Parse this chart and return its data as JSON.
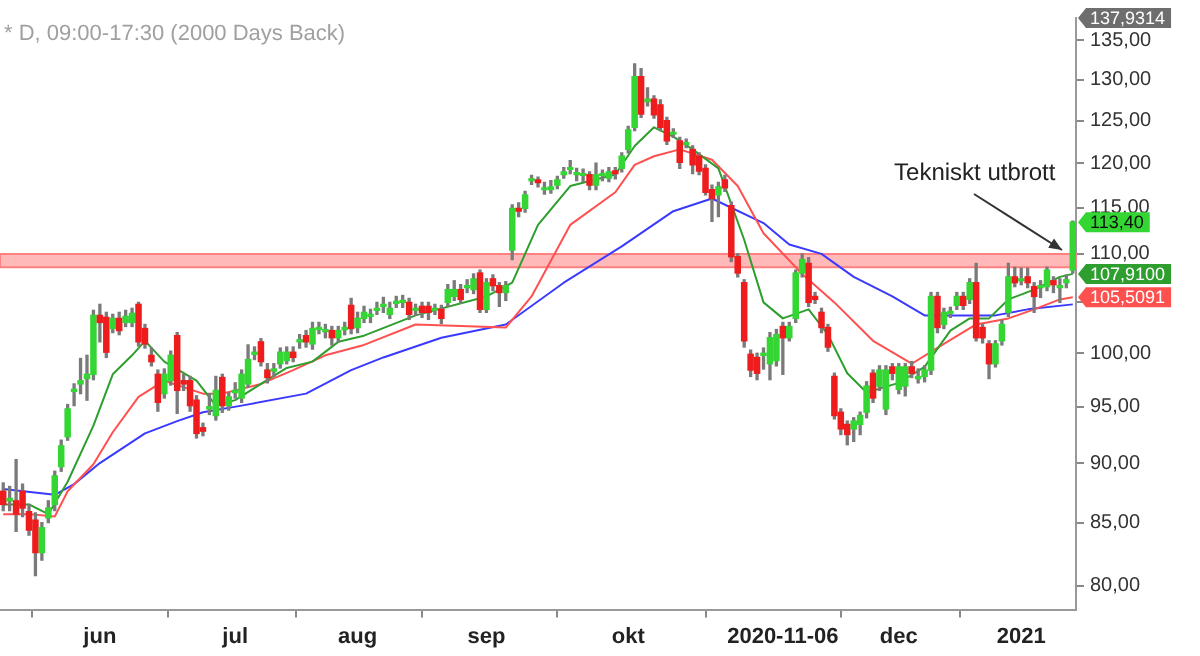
{
  "chart_data": {
    "type": "candlestick",
    "title": "* D, 09:00-17:30 (2000 Days Back)",
    "categories": [
      null,
      null,
      null,
      null,
      null,
      null,
      null,
      null,
      null,
      null,
      null,
      null,
      null,
      null,
      null,
      "jun",
      null,
      null,
      null,
      null,
      null,
      null,
      null,
      null,
      null,
      null,
      null,
      null,
      null,
      null,
      null,
      null,
      null,
      null,
      null,
      null,
      "jul",
      null,
      null,
      null,
      null,
      null,
      null,
      null,
      null,
      null,
      null,
      null,
      null,
      null,
      null,
      null,
      null,
      null,
      null,
      "aug",
      null,
      null,
      null,
      null,
      null,
      null,
      null,
      null,
      null,
      null,
      null,
      null,
      null,
      null,
      null,
      null,
      null,
      null,
      null,
      "sep",
      null,
      null,
      null,
      null,
      null,
      null,
      null,
      null,
      null,
      null,
      null,
      null,
      null,
      null,
      null,
      null,
      null,
      null,
      null,
      null,
      null,
      "okt",
      null,
      null,
      null,
      null,
      null,
      null,
      null,
      null,
      null,
      null,
      null,
      null,
      null,
      null,
      null,
      null,
      null,
      null,
      null,
      null,
      null,
      null,
      null,
      "2020-11-06",
      null,
      null,
      null,
      null,
      null,
      null,
      null,
      null,
      null,
      null,
      null,
      null,
      null,
      null,
      null,
      null,
      null,
      "dec",
      null,
      null,
      null,
      null,
      null,
      null,
      null,
      null,
      null,
      null,
      null,
      null,
      null,
      null,
      null,
      null,
      null,
      null,
      "2021",
      null,
      null,
      null,
      null,
      null,
      null,
      null,
      null
    ],
    "ohlc": [
      [
        87.6,
        88.3,
        86.0,
        86.5
      ],
      [
        86.8,
        88.0,
        86.0,
        87.0
      ],
      [
        86.8,
        90.3,
        84.3,
        85.7
      ],
      [
        87.6,
        88.2,
        85.5,
        86.2
      ],
      [
        85.9,
        86.5,
        84.0,
        84.4
      ],
      [
        85.2,
        85.8,
        80.8,
        82.6
      ],
      [
        82.6,
        85.0,
        82.0,
        84.6
      ],
      [
        85.4,
        86.8,
        85.0,
        86.2
      ],
      [
        86.5,
        89.3,
        86.0,
        88.9
      ],
      [
        89.7,
        92.0,
        89.3,
        91.5
      ],
      [
        92.3,
        95.2,
        92.0,
        94.8
      ],
      [
        96.4,
        97.1,
        95.1,
        96.6
      ],
      [
        97.1,
        99.5,
        96.2,
        97.4
      ],
      [
        97.6,
        99.8,
        95.6,
        98.0
      ],
      [
        98.0,
        104.2,
        97.5,
        103.7
      ],
      [
        103.7,
        104.8,
        101.1,
        103.0
      ],
      [
        103.5,
        104.0,
        99.6,
        100.1
      ],
      [
        102.4,
        103.8,
        102.0,
        103.4
      ],
      [
        103.4,
        104.0,
        101.8,
        102.2
      ],
      [
        103.0,
        104.2,
        102.6,
        103.6
      ],
      [
        103.0,
        104.4,
        102.6,
        103.9
      ],
      [
        104.8,
        105.0,
        100.7,
        101.1
      ],
      [
        102.4,
        102.8,
        100.5,
        100.9
      ],
      [
        99.8,
        100.5,
        98.8,
        99.2
      ],
      [
        98.0,
        98.4,
        94.6,
        95.4
      ],
      [
        96.2,
        98.5,
        95.8,
        98.0
      ],
      [
        97.4,
        100.2,
        97.0,
        99.8
      ],
      [
        101.7,
        102.0,
        94.4,
        96.5
      ],
      [
        97.4,
        98.0,
        96.5,
        97.1
      ],
      [
        97.4,
        97.8,
        94.6,
        95.1
      ],
      [
        95.6,
        96.0,
        92.2,
        92.6
      ],
      [
        93.1,
        93.5,
        92.4,
        92.8
      ],
      [
        94.8,
        96.2,
        94.3,
        95.0
      ],
      [
        94.2,
        97.8,
        93.8,
        96.5
      ],
      [
        97.7,
        98.0,
        94.5,
        95.1
      ],
      [
        95.1,
        96.3,
        94.7,
        95.9
      ],
      [
        96.3,
        97.2,
        95.8,
        96.5
      ],
      [
        95.8,
        98.4,
        95.4,
        98.0
      ],
      [
        97.1,
        100.8,
        96.8,
        99.4
      ],
      [
        99.9,
        100.6,
        99.4,
        100.1
      ],
      [
        101.1,
        101.4,
        98.8,
        99.2
      ],
      [
        98.4,
        99.0,
        97.2,
        97.7
      ],
      [
        98.3,
        99.0,
        97.8,
        98.5
      ],
      [
        99.0,
        100.5,
        98.6,
        100.1
      ],
      [
        99.3,
        100.6,
        99.0,
        100.1
      ],
      [
        100.1,
        100.6,
        99.2,
        99.6
      ],
      [
        101.1,
        101.8,
        100.5,
        101.3
      ],
      [
        101.7,
        102.2,
        100.6,
        101.1
      ],
      [
        100.9,
        103.0,
        100.4,
        102.4
      ],
      [
        102.3,
        103.0,
        101.9,
        102.5
      ],
      [
        102.1,
        102.8,
        101.5,
        102.3
      ],
      [
        102.2,
        102.6,
        100.8,
        101.5
      ],
      [
        101.5,
        102.6,
        101.1,
        102.2
      ],
      [
        102.3,
        103.0,
        101.8,
        102.5
      ],
      [
        104.7,
        105.4,
        101.9,
        102.4
      ],
      [
        102.5,
        104.0,
        102.0,
        103.4
      ],
      [
        103.4,
        104.6,
        103.0,
        104.0
      ],
      [
        103.6,
        104.3,
        103.0,
        103.8
      ],
      [
        104.2,
        105.0,
        103.8,
        104.4
      ],
      [
        104.6,
        105.5,
        104.0,
        104.8
      ],
      [
        103.8,
        105.0,
        103.4,
        104.4
      ],
      [
        104.9,
        105.6,
        104.5,
        105.1
      ],
      [
        105.0,
        105.7,
        104.5,
        105.2
      ],
      [
        105.0,
        105.4,
        103.3,
        103.8
      ],
      [
        104.2,
        104.8,
        103.7,
        104.4
      ],
      [
        104.6,
        105.0,
        103.5,
        104.0
      ],
      [
        104.6,
        105.0,
        103.3,
        104.0
      ],
      [
        104.2,
        104.8,
        103.8,
        104.4
      ],
      [
        104.3,
        104.7,
        102.9,
        103.4
      ],
      [
        105.0,
        106.8,
        104.6,
        106.3
      ],
      [
        105.6,
        107.2,
        105.2,
        106.3
      ],
      [
        106.3,
        106.8,
        104.9,
        105.3
      ],
      [
        106.5,
        107.3,
        106.0,
        106.7
      ],
      [
        106.3,
        107.9,
        105.9,
        107.4
      ],
      [
        108.0,
        108.3,
        104.0,
        104.3
      ],
      [
        104.3,
        107.4,
        104.0,
        107.0
      ],
      [
        107.4,
        107.8,
        106.2,
        106.7
      ],
      [
        106.7,
        107.0,
        104.6,
        106.0
      ],
      [
        106.0,
        107.1,
        105.2,
        106.7
      ],
      [
        110.4,
        115.3,
        109.4,
        114.9
      ],
      [
        114.9,
        115.5,
        114.0,
        114.6
      ],
      [
        114.9,
        116.8,
        114.5,
        116.4
      ],
      [
        118.0,
        118.6,
        117.6,
        118.2
      ],
      [
        118.1,
        118.4,
        117.3,
        117.8
      ],
      [
        117.0,
        117.8,
        116.5,
        117.2
      ],
      [
        117.0,
        118.0,
        116.6,
        117.3
      ],
      [
        117.5,
        118.5,
        117.1,
        118.1
      ],
      [
        118.7,
        119.5,
        118.3,
        119.0
      ],
      [
        119.3,
        120.3,
        118.8,
        119.5
      ],
      [
        118.7,
        119.4,
        118.0,
        118.9
      ],
      [
        118.6,
        119.3,
        117.9,
        118.8
      ],
      [
        118.7,
        119.0,
        117.0,
        117.5
      ],
      [
        117.5,
        120.0,
        117.0,
        118.7
      ],
      [
        118.6,
        119.2,
        118.0,
        118.8
      ],
      [
        118.3,
        119.5,
        117.9,
        119.0
      ],
      [
        119.1,
        119.5,
        118.2,
        118.8
      ],
      [
        119.4,
        121.2,
        119.0,
        120.8
      ],
      [
        121.6,
        124.3,
        121.2,
        123.9
      ],
      [
        124.2,
        132.0,
        123.8,
        130.4
      ],
      [
        130.4,
        131.4,
        125.4,
        125.8
      ],
      [
        127.3,
        129.0,
        126.8,
        127.6
      ],
      [
        127.6,
        128.0,
        125.3,
        125.7
      ],
      [
        126.9,
        127.5,
        123.8,
        124.2
      ],
      [
        125.0,
        125.4,
        122.2,
        122.6
      ],
      [
        123.4,
        124.0,
        123.0,
        123.6
      ],
      [
        122.6,
        123.0,
        119.4,
        120.1
      ],
      [
        122.2,
        122.8,
        121.8,
        122.4
      ],
      [
        121.6,
        122.0,
        118.8,
        119.8
      ],
      [
        120.8,
        121.2,
        118.7,
        119.1
      ],
      [
        119.4,
        119.8,
        116.4,
        116.7
      ],
      [
        117.0,
        117.5,
        113.5,
        116.0
      ],
      [
        116.4,
        117.8,
        114.0,
        117.3
      ],
      [
        118.1,
        118.6,
        116.8,
        117.2
      ],
      [
        115.2,
        115.6,
        109.2,
        109.7
      ],
      [
        109.7,
        110.0,
        107.6,
        108.0
      ],
      [
        107.0,
        107.3,
        100.6,
        101.2
      ],
      [
        99.9,
        100.3,
        97.8,
        98.4
      ],
      [
        99.6,
        100.0,
        97.5,
        98.1
      ],
      [
        99.8,
        100.5,
        98.5,
        100.0
      ],
      [
        99.0,
        102.0,
        97.5,
        101.5
      ],
      [
        99.3,
        102.3,
        98.8,
        101.8
      ],
      [
        102.6,
        103.0,
        98.0,
        101.5
      ],
      [
        101.5,
        103.0,
        101.2,
        102.6
      ],
      [
        103.4,
        108.3,
        103.0,
        108.0
      ],
      [
        108.0,
        110.0,
        107.6,
        109.4
      ],
      [
        109.0,
        109.6,
        104.6,
        105.0
      ],
      [
        105.6,
        106.0,
        104.9,
        105.3
      ],
      [
        104.0,
        104.4,
        102.0,
        102.5
      ],
      [
        102.5,
        102.8,
        100.2,
        100.6
      ],
      [
        97.8,
        98.1,
        93.9,
        94.2
      ],
      [
        94.5,
        94.8,
        92.5,
        93.0
      ],
      [
        93.4,
        93.7,
        91.6,
        92.5
      ],
      [
        93.0,
        94.0,
        91.9,
        93.7
      ],
      [
        93.4,
        94.5,
        92.5,
        94.2
      ],
      [
        94.5,
        97.3,
        94.0,
        96.9
      ],
      [
        98.1,
        98.4,
        95.4,
        95.8
      ],
      [
        96.9,
        98.8,
        96.5,
        98.4
      ],
      [
        94.8,
        98.8,
        94.3,
        98.4
      ],
      [
        98.7,
        99.0,
        97.5,
        98.1
      ],
      [
        96.6,
        99.0,
        96.2,
        98.7
      ],
      [
        96.9,
        99.0,
        96.0,
        98.7
      ],
      [
        98.7,
        99.2,
        97.7,
        98.1
      ],
      [
        97.6,
        98.5,
        97.2,
        97.8
      ],
      [
        97.8,
        98.8,
        97.3,
        98.4
      ],
      [
        98.4,
        106.0,
        98.0,
        105.6
      ],
      [
        105.6,
        106.0,
        102.0,
        102.5
      ],
      [
        102.8,
        104.4,
        102.4,
        104.0
      ],
      [
        103.9,
        104.5,
        103.5,
        104.1
      ],
      [
        104.7,
        106.0,
        104.3,
        105.6
      ],
      [
        105.6,
        106.0,
        104.3,
        104.7
      ],
      [
        105.3,
        107.4,
        104.9,
        107.0
      ],
      [
        107.0,
        109.0,
        101.2,
        101.5
      ],
      [
        102.5,
        102.8,
        101.0,
        101.5
      ],
      [
        100.9,
        101.2,
        97.6,
        99.0
      ],
      [
        99.0,
        101.2,
        98.7,
        100.9
      ],
      [
        101.2,
        103.2,
        100.8,
        102.8
      ],
      [
        104.0,
        109.0,
        103.6,
        107.6
      ],
      [
        107.6,
        108.6,
        106.6,
        107.0
      ],
      [
        107.2,
        108.5,
        106.8,
        107.4
      ],
      [
        107.6,
        108.5,
        106.5,
        107.0
      ],
      [
        106.6,
        107.0,
        104.0,
        105.6
      ],
      [
        106.5,
        107.2,
        105.5,
        106.7
      ],
      [
        106.6,
        108.6,
        106.2,
        108.3
      ],
      [
        107.2,
        107.6,
        106.0,
        106.8
      ],
      [
        106.5,
        107.4,
        105.0,
        106.7
      ],
      [
        107.0,
        107.8,
        106.5,
        107.3
      ],
      [
        108.3,
        113.5,
        108.0,
        113.4
      ]
    ],
    "series": [
      {
        "type": "line",
        "color": "#2e9e2e",
        "values": [
          86.5,
          null,
          null,
          null,
          86.5,
          null,
          null,
          85.7,
          null,
          null,
          88.4,
          null,
          null,
          null,
          93.3,
          null,
          null,
          98.0,
          null,
          null,
          99.8,
          null,
          101.2,
          null,
          null,
          99.2,
          null,
          null,
          null,
          null,
          97.4,
          null,
          null,
          95.1,
          null,
          null,
          95.6,
          null,
          null,
          null,
          97.1,
          null,
          null,
          null,
          98.6,
          null,
          null,
          null,
          99.2,
          null,
          null,
          null,
          101.1,
          null,
          null,
          null,
          101.7,
          null,
          null,
          null,
          null,
          null,
          null,
          null,
          103.7,
          null,
          null,
          null,
          null,
          null,
          null,
          null,
          null,
          null,
          null,
          105.6,
          null,
          null,
          null,
          107.0,
          null,
          null,
          null,
          113.1,
          null,
          null,
          null,
          null,
          117.4,
          null,
          null,
          null,
          null,
          null,
          null,
          118.7,
          null,
          null,
          122.0,
          null,
          null,
          124.2,
          null,
          null,
          123.1,
          null,
          null,
          121.6,
          null,
          null,
          null,
          119.4,
          null,
          null,
          null,
          111.5,
          null,
          null,
          105.0,
          null,
          null,
          103.4,
          null,
          null,
          null,
          104.3,
          null,
          null,
          101.8,
          null,
          null,
          98.1,
          null,
          null,
          96.3,
          null,
          null,
          null,
          null,
          97.2,
          null,
          null,
          null,
          98.7,
          null,
          null,
          null,
          102.2,
          null,
          null,
          103.4,
          null,
          null,
          103.4,
          null,
          null,
          105.3,
          null,
          null,
          null,
          106.3,
          null,
          null,
          null,
          107.6,
          null,
          107.91
        ],
        "value_labels": [
          null,
          null,
          null,
          null,
          null,
          null,
          null,
          null,
          null,
          null,
          null,
          null,
          null,
          null,
          null,
          null,
          null,
          null,
          null,
          null,
          null,
          null,
          null,
          null,
          null,
          null,
          null,
          null,
          null,
          null,
          null,
          null,
          null,
          null,
          null,
          null,
          null,
          null,
          null,
          null,
          null,
          null,
          null,
          null,
          null,
          null,
          null,
          null,
          null,
          null,
          null,
          null,
          null,
          null,
          null,
          null,
          null,
          null,
          null,
          null,
          null,
          null,
          null,
          null,
          null,
          null,
          null,
          null,
          null,
          null,
          null,
          null,
          null,
          null,
          null,
          null,
          null,
          null,
          null,
          null,
          null,
          null,
          null,
          null,
          null,
          null,
          null,
          null,
          null,
          null,
          null,
          null,
          null,
          null,
          null,
          null,
          null,
          null,
          null,
          null,
          null,
          null,
          null,
          null,
          null,
          null,
          null,
          null,
          null,
          null,
          null,
          null,
          null,
          null,
          null,
          null,
          null,
          null,
          null,
          null,
          null,
          null,
          null,
          null,
          null,
          null,
          null,
          null,
          null,
          null,
          null,
          null,
          null,
          null,
          null,
          null,
          null,
          null,
          null,
          null,
          null,
          null,
          null,
          null,
          null,
          null,
          null,
          null,
          null,
          null,
          null,
          null,
          null,
          null,
          null,
          null,
          null,
          null,
          null,
          null,
          null,
          null,
          null,
          null,
          null,
          null,
          "107,9100"
        ]
      },
      {
        "type": "line",
        "color": "#ff5050",
        "values": [
          85.7,
          null,
          null,
          null,
          85.7,
          null,
          null,
          null,
          85.5,
          null,
          87.6,
          null,
          null,
          null,
          89.9,
          null,
          null,
          92.7,
          null,
          null,
          null,
          95.9,
          null,
          null,
          null,
          97.4,
          null,
          null,
          null,
          null,
          null,
          96.2,
          null,
          null,
          96.2,
          null,
          null,
          null,
          null,
          null,
          97.1,
          null,
          null,
          null,
          null,
          98.4,
          null,
          null,
          null,
          null,
          99.8,
          null,
          null,
          null,
          null,
          null,
          100.8,
          null,
          null,
          null,
          null,
          null,
          null,
          null,
          102.8,
          null,
          null,
          null,
          null,
          null,
          null,
          null,
          null,
          null,
          null,
          null,
          null,
          null,
          102.5,
          null,
          null,
          null,
          105.6,
          null,
          null,
          null,
          null,
          null,
          113.1,
          null,
          null,
          null,
          null,
          null,
          null,
          116.7,
          null,
          null,
          119.8,
          null,
          null,
          120.8,
          null,
          null,
          null,
          121.6,
          null,
          null,
          null,
          null,
          120.4,
          null,
          null,
          null,
          117.4,
          null,
          null,
          null,
          112.2,
          null,
          null,
          null,
          null,
          null,
          107.9,
          null,
          null,
          null,
          null,
          105.0,
          null,
          null,
          null,
          null,
          null,
          101.2,
          null,
          null,
          null,
          null,
          null,
          99.0,
          null,
          null,
          null,
          null,
          100.9,
          null,
          null,
          null,
          null,
          102.8,
          null,
          null,
          null,
          null,
          103.4,
          null,
          null,
          null,
          104.3,
          null,
          null,
          null,
          105.3,
          null,
          105.51
        ],
        "value_labels": [
          null,
          null,
          null,
          null,
          null,
          null,
          null,
          null,
          null,
          null,
          null,
          null,
          null,
          null,
          null,
          null,
          null,
          null,
          null,
          null,
          null,
          null,
          null,
          null,
          null,
          null,
          null,
          null,
          null,
          null,
          null,
          null,
          null,
          null,
          null,
          null,
          null,
          null,
          null,
          null,
          null,
          null,
          null,
          null,
          null,
          null,
          null,
          null,
          null,
          null,
          null,
          null,
          null,
          null,
          null,
          null,
          null,
          null,
          null,
          null,
          null,
          null,
          null,
          null,
          null,
          null,
          null,
          null,
          null,
          null,
          null,
          null,
          null,
          null,
          null,
          null,
          null,
          null,
          null,
          null,
          null,
          null,
          null,
          null,
          null,
          null,
          null,
          null,
          null,
          null,
          null,
          null,
          null,
          null,
          null,
          null,
          null,
          null,
          null,
          null,
          null,
          null,
          null,
          null,
          null,
          null,
          null,
          null,
          null,
          null,
          null,
          null,
          null,
          null,
          null,
          null,
          null,
          null,
          null,
          null,
          null,
          null,
          null,
          null,
          null,
          null,
          null,
          null,
          null,
          null,
          null,
          null,
          null,
          null,
          null,
          null,
          null,
          null,
          null,
          null,
          null,
          null,
          null,
          null,
          null,
          null,
          null,
          null,
          null,
          null,
          null,
          null,
          null,
          null,
          null,
          null,
          null,
          null,
          null,
          null,
          null,
          null,
          null,
          null,
          null,
          null,
          "105,5091"
        ]
      },
      {
        "type": "line",
        "color": "#3a3aff",
        "values": [
          87.8,
          null,
          null,
          null,
          null,
          null,
          null,
          null,
          87.3,
          null,
          null,
          88.2,
          null,
          null,
          null,
          90.0,
          null,
          null,
          null,
          null,
          null,
          null,
          92.6,
          null,
          null,
          null,
          null,
          93.7,
          null,
          null,
          null,
          94.5,
          null,
          null,
          null,
          null,
          null,
          95.1,
          null,
          null,
          null,
          null,
          null,
          null,
          null,
          null,
          null,
          96.2,
          null,
          null,
          null,
          null,
          null,
          null,
          98.4,
          null,
          null,
          null,
          null,
          99.6,
          null,
          null,
          null,
          null,
          null,
          null,
          null,
          null,
          101.5,
          null,
          null,
          null,
          null,
          null,
          null,
          null,
          null,
          null,
          102.8,
          null,
          null,
          null,
          null,
          null,
          null,
          null,
          null,
          107.0,
          null,
          null,
          null,
          null,
          null,
          null,
          null,
          null,
          110.8,
          null,
          null,
          null,
          null,
          null,
          null,
          null,
          114.6,
          null,
          null,
          null,
          null,
          null,
          116.0,
          null,
          null,
          null,
          null,
          null,
          null,
          null,
          113.3,
          null,
          null,
          null,
          111.0,
          null,
          null,
          null,
          null,
          110.0,
          null,
          null,
          null,
          null,
          107.6,
          null,
          null,
          null,
          null,
          null,
          105.6,
          null,
          null,
          null,
          null,
          103.7,
          null,
          null,
          null,
          null,
          null,
          103.7,
          null,
          null,
          null,
          null,
          103.7,
          null,
          null,
          null,
          null,
          104.3,
          null,
          null,
          null,
          null,
          null,
          null,
          104.8
        ]
      }
    ],
    "bands": [
      {
        "axis": "y",
        "from": 108.6,
        "to": 110.0,
        "color": "#ff8080"
      }
    ],
    "value_labels": [
      null,
      null,
      null,
      null,
      null,
      null,
      null,
      null,
      null,
      null,
      null,
      null,
      null,
      null,
      null,
      null,
      null,
      null,
      null,
      null,
      null,
      null,
      null,
      null,
      null,
      null,
      null,
      null,
      null,
      null,
      null,
      null,
      null,
      null,
      null,
      null,
      null,
      null,
      null,
      null,
      null,
      null,
      null,
      null,
      null,
      null,
      null,
      null,
      null,
      null,
      null,
      null,
      null,
      null,
      null,
      null,
      null,
      null,
      null,
      null,
      null,
      null,
      null,
      null,
      null,
      null,
      null,
      null,
      null,
      null,
      null,
      null,
      null,
      null,
      null,
      null,
      null,
      null,
      null,
      null,
      null,
      null,
      null,
      null,
      null,
      null,
      null,
      null,
      null,
      null,
      null,
      null,
      null,
      null,
      null,
      null,
      null,
      null,
      null,
      null,
      null,
      null,
      null,
      null,
      null,
      null,
      null,
      null,
      null,
      null,
      null,
      null,
      null,
      null,
      null,
      null,
      null,
      null,
      null,
      null,
      null,
      null,
      null,
      null,
      null,
      null,
      null,
      null,
      null,
      null,
      null,
      null,
      null,
      null,
      null,
      null,
      null,
      null,
      null,
      null,
      null,
      null,
      null,
      null,
      null,
      null,
      null,
      null,
      null,
      null,
      null,
      null,
      null,
      null,
      null,
      null,
      null,
      null,
      null,
      null,
      null,
      null,
      null,
      null,
      null,
      null,
      "113,40"
    ],
    "annotations": [
      {
        "text": "Tekniskt utbrott",
        "y": 110.5
      },
      "137,9314"
    ],
    "log": true,
    "ylim": [
      78.2,
      137.9314
    ],
    "yticks": [
      {
        "value": 80,
        "label": "80,00"
      },
      {
        "value": 85,
        "label": "85,00"
      },
      {
        "value": 90,
        "label": "90,00"
      },
      {
        "value": 95,
        "label": "95,00"
      },
      {
        "value": 100,
        "label": "100,00"
      },
      {
        "value": 105,
        "label": null
      },
      {
        "value": 110,
        "label": "110,00"
      },
      {
        "value": 115,
        "label": "115,00"
      },
      {
        "value": 120,
        "label": "120,00"
      },
      {
        "value": 125,
        "label": "125,00"
      },
      {
        "value": 130,
        "label": "130,00"
      },
      {
        "value": 135,
        "label": "135,00"
      }
    ]
  }
}
